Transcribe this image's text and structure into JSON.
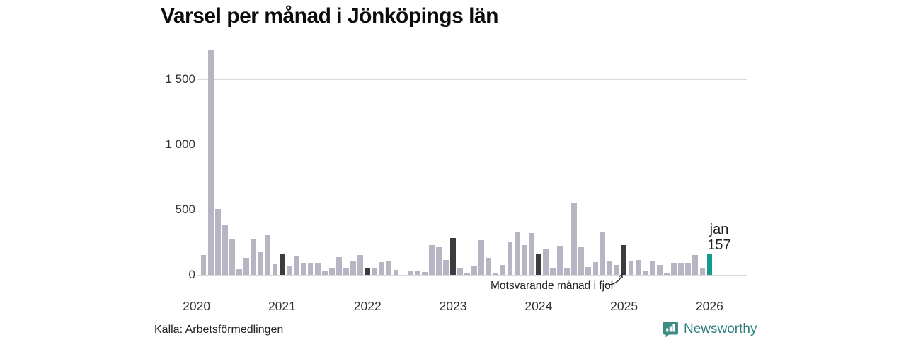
{
  "chart_data": {
    "type": "bar",
    "title": "Varsel per månad i Jönköpings län",
    "xlabel": "",
    "ylabel": "",
    "ylim": [
      0,
      1760
    ],
    "grid": "horizontal",
    "y_ticks": [
      {
        "value": 0,
        "label": "0"
      },
      {
        "value": 500,
        "label": "500"
      },
      {
        "value": 1000,
        "label": "1 000"
      },
      {
        "value": 1500,
        "label": "1 500"
      }
    ],
    "x_year_ticks": [
      "2020",
      "2021",
      "2022",
      "2023",
      "2024",
      "2025",
      "2026"
    ],
    "series_note": "kind: n = normal month, d = same month (january) in earlier year, c = current highlighted month",
    "months": [
      {
        "m": "feb 2020",
        "v": 150,
        "k": "n"
      },
      {
        "m": "mar 2020",
        "v": 1727,
        "k": "n"
      },
      {
        "m": "apr 2020",
        "v": 505,
        "k": "n"
      },
      {
        "m": "maj 2020",
        "v": 380,
        "k": "n"
      },
      {
        "m": "jun 2020",
        "v": 270,
        "k": "n"
      },
      {
        "m": "jul 2020",
        "v": 45,
        "k": "n"
      },
      {
        "m": "aug 2020",
        "v": 130,
        "k": "n"
      },
      {
        "m": "sep 2020",
        "v": 275,
        "k": "n"
      },
      {
        "m": "okt 2020",
        "v": 175,
        "k": "n"
      },
      {
        "m": "nov 2020",
        "v": 305,
        "k": "n"
      },
      {
        "m": "dec 2020",
        "v": 80,
        "k": "n"
      },
      {
        "m": "jan 2021",
        "v": 165,
        "k": "d"
      },
      {
        "m": "feb 2021",
        "v": 70,
        "k": "n"
      },
      {
        "m": "mar 2021",
        "v": 140,
        "k": "n"
      },
      {
        "m": "apr 2021",
        "v": 90,
        "k": "n"
      },
      {
        "m": "maj 2021",
        "v": 95,
        "k": "n"
      },
      {
        "m": "jun 2021",
        "v": 90,
        "k": "n"
      },
      {
        "m": "jul 2021",
        "v": 35,
        "k": "n"
      },
      {
        "m": "aug 2021",
        "v": 50,
        "k": "n"
      },
      {
        "m": "sep 2021",
        "v": 135,
        "k": "n"
      },
      {
        "m": "okt 2021",
        "v": 55,
        "k": "n"
      },
      {
        "m": "nov 2021",
        "v": 105,
        "k": "n"
      },
      {
        "m": "dec 2021",
        "v": 150,
        "k": "n"
      },
      {
        "m": "jan 2022",
        "v": 55,
        "k": "d"
      },
      {
        "m": "feb 2022",
        "v": 50,
        "k": "n"
      },
      {
        "m": "mar 2022",
        "v": 100,
        "k": "n"
      },
      {
        "m": "apr 2022",
        "v": 110,
        "k": "n"
      },
      {
        "m": "maj 2022",
        "v": 40,
        "k": "n"
      },
      {
        "m": "jun 2022",
        "v": 0,
        "k": "n"
      },
      {
        "m": "jul 2022",
        "v": 25,
        "k": "n"
      },
      {
        "m": "aug 2022",
        "v": 30,
        "k": "n"
      },
      {
        "m": "sep 2022",
        "v": 20,
        "k": "n"
      },
      {
        "m": "okt 2022",
        "v": 230,
        "k": "n"
      },
      {
        "m": "nov 2022",
        "v": 210,
        "k": "n"
      },
      {
        "m": "dec 2022",
        "v": 115,
        "k": "n"
      },
      {
        "m": "jan 2023",
        "v": 285,
        "k": "d"
      },
      {
        "m": "feb 2023",
        "v": 50,
        "k": "n"
      },
      {
        "m": "mar 2023",
        "v": 15,
        "k": "n"
      },
      {
        "m": "apr 2023",
        "v": 70,
        "k": "n"
      },
      {
        "m": "maj 2023",
        "v": 265,
        "k": "n"
      },
      {
        "m": "jun 2023",
        "v": 130,
        "k": "n"
      },
      {
        "m": "jul 2023",
        "v": 10,
        "k": "n"
      },
      {
        "m": "aug 2023",
        "v": 75,
        "k": "n"
      },
      {
        "m": "sep 2023",
        "v": 250,
        "k": "n"
      },
      {
        "m": "okt 2023",
        "v": 335,
        "k": "n"
      },
      {
        "m": "nov 2023",
        "v": 230,
        "k": "n"
      },
      {
        "m": "dec 2023",
        "v": 320,
        "k": "n"
      },
      {
        "m": "jan 2024",
        "v": 165,
        "k": "d"
      },
      {
        "m": "feb 2024",
        "v": 200,
        "k": "n"
      },
      {
        "m": "mar 2024",
        "v": 50,
        "k": "n"
      },
      {
        "m": "apr 2024",
        "v": 220,
        "k": "n"
      },
      {
        "m": "maj 2024",
        "v": 55,
        "k": "n"
      },
      {
        "m": "jun 2024",
        "v": 555,
        "k": "n"
      },
      {
        "m": "jul 2024",
        "v": 215,
        "k": "n"
      },
      {
        "m": "aug 2024",
        "v": 60,
        "k": "n"
      },
      {
        "m": "sep 2024",
        "v": 100,
        "k": "n"
      },
      {
        "m": "okt 2024",
        "v": 325,
        "k": "n"
      },
      {
        "m": "nov 2024",
        "v": 110,
        "k": "n"
      },
      {
        "m": "dec 2024",
        "v": 75,
        "k": "n"
      },
      {
        "m": "jan 2025",
        "v": 230,
        "k": "d"
      },
      {
        "m": "feb 2025",
        "v": 105,
        "k": "n"
      },
      {
        "m": "mar 2025",
        "v": 115,
        "k": "n"
      },
      {
        "m": "apr 2025",
        "v": 35,
        "k": "n"
      },
      {
        "m": "maj 2025",
        "v": 110,
        "k": "n"
      },
      {
        "m": "jun 2025",
        "v": 75,
        "k": "n"
      },
      {
        "m": "jul 2025",
        "v": 15,
        "k": "n"
      },
      {
        "m": "aug 2025",
        "v": 85,
        "k": "n"
      },
      {
        "m": "sep 2025",
        "v": 95,
        "k": "n"
      },
      {
        "m": "okt 2025",
        "v": 85,
        "k": "n"
      },
      {
        "m": "nov 2025",
        "v": 155,
        "k": "n"
      },
      {
        "m": "dec 2025",
        "v": 48,
        "k": "n"
      },
      {
        "m": "jan 2026",
        "v": 157,
        "k": "c"
      }
    ]
  },
  "highlight": {
    "month_label": "jan",
    "value_label": "157"
  },
  "annotation": {
    "text": "Motsvarande månad i fjol",
    "target_month": "jan 2025"
  },
  "footer": {
    "source": "Källa: Arbetsförmedlingen"
  },
  "brand": {
    "name": "Newsworthy"
  },
  "colors": {
    "bar_normal": "#b7b4c4",
    "bar_lastyear": "#3c3c3c",
    "bar_current": "#17998b",
    "gridline": "#d9d9d9",
    "axis_text": "#333333",
    "title_text": "#0b0b0b",
    "brand_teal": "#2e7f7c",
    "brand_icon": "#3d8b82"
  }
}
